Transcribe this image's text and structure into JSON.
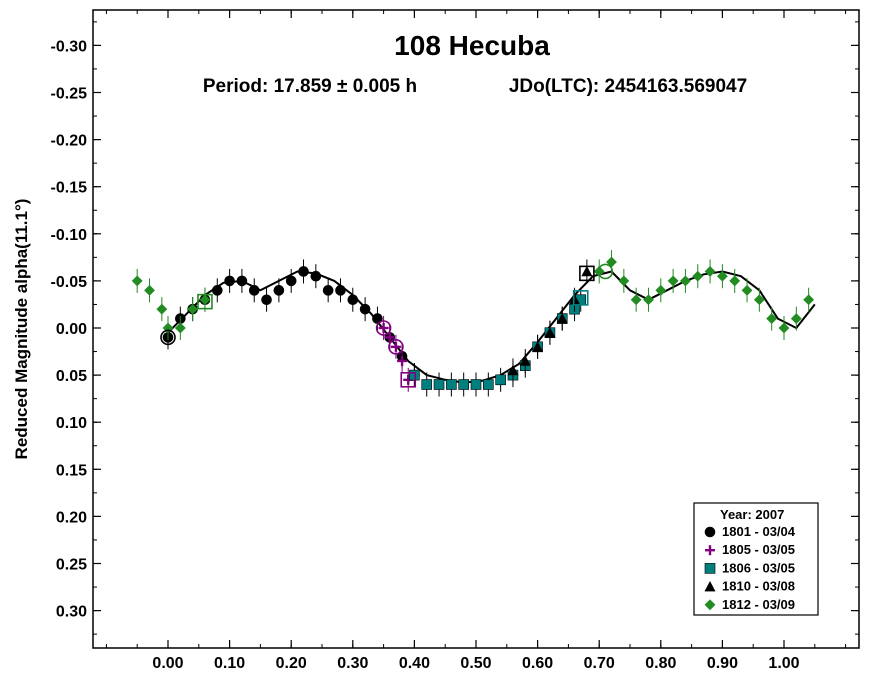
{
  "chart_data": {
    "type": "scatter",
    "title": "108 Hecuba",
    "subtitle_period": "Period: 17.859 ± 0.005 h",
    "subtitle_epoch": "JDo(LTC): 2454163.569047",
    "xlabel": "",
    "ylabel": "Reduced Magnitude alpha(11.1°)",
    "xlim": [
      -0.12,
      1.12
    ],
    "ylim": [
      -0.35,
      0.35
    ],
    "y_inverted": true,
    "x_ticks": [
      "0.00",
      "0.10",
      "0.20",
      "0.30",
      "0.40",
      "0.50",
      "0.60",
      "0.70",
      "0.80",
      "0.90",
      "1.00"
    ],
    "y_ticks": [
      "-0.30",
      "-0.25",
      "-0.20",
      "-0.15",
      "-0.10",
      "-0.05",
      "0.00",
      "0.05",
      "0.10",
      "0.15",
      "0.20",
      "0.25",
      "0.30"
    ],
    "legend": {
      "title": "Year: 2007",
      "placement": "bottom-right",
      "entries": [
        "1801 - 03/04",
        "1805 - 03/05",
        "1806 - 03/05",
        "1810 - 03/08",
        "1812 - 03/09"
      ]
    },
    "colors": {
      "1801": "#000000",
      "1805": "#800080",
      "1806": "#007f7f",
      "1810": "#000000",
      "1812": "#228b22"
    },
    "series": [
      {
        "name": "1801 - 03/04",
        "marker": "circle",
        "color": "#000000",
        "x": [
          0.0,
          0.02,
          0.04,
          0.06,
          0.08,
          0.1,
          0.12,
          0.14,
          0.16,
          0.18,
          0.2,
          0.22,
          0.24,
          0.26,
          0.28,
          0.3,
          0.32,
          0.34,
          0.36,
          0.38,
          0.4
        ],
        "y": [
          0.01,
          -0.01,
          -0.02,
          -0.03,
          -0.04,
          -0.05,
          -0.05,
          -0.04,
          -0.03,
          -0.04,
          -0.05,
          -0.06,
          -0.055,
          -0.04,
          -0.04,
          -0.03,
          -0.02,
          -0.01,
          0.01,
          0.03,
          0.05
        ]
      },
      {
        "name": "1805 - 03/05",
        "marker": "plus",
        "color": "#800080",
        "x": [
          0.35,
          0.36,
          0.37,
          0.38,
          0.39
        ],
        "y": [
          0.0,
          0.01,
          0.02,
          0.035,
          0.055
        ]
      },
      {
        "name": "1806 - 03/05",
        "marker": "square",
        "color": "#007f7f",
        "x": [
          0.4,
          0.42,
          0.44,
          0.46,
          0.48,
          0.5,
          0.52,
          0.54,
          0.56,
          0.58,
          0.6,
          0.62,
          0.64,
          0.66,
          0.67
        ],
        "y": [
          0.05,
          0.06,
          0.06,
          0.06,
          0.06,
          0.06,
          0.06,
          0.055,
          0.05,
          0.04,
          0.02,
          0.005,
          -0.01,
          -0.02,
          -0.03
        ]
      },
      {
        "name": "1810 - 03/08",
        "marker": "triangle",
        "color": "#000000",
        "x": [
          0.56,
          0.58,
          0.6,
          0.62,
          0.64,
          0.66,
          0.68
        ],
        "y": [
          0.045,
          0.035,
          0.02,
          0.005,
          -0.01,
          -0.03,
          -0.06
        ]
      },
      {
        "name": "1812 - 03/09",
        "marker": "diamond",
        "color": "#228b22",
        "x": [
          -0.05,
          -0.03,
          -0.01,
          0.0,
          0.02,
          0.04,
          0.06,
          0.7,
          0.72,
          0.74,
          0.76,
          0.78,
          0.8,
          0.82,
          0.84,
          0.86,
          0.88,
          0.9,
          0.92,
          0.94,
          0.96,
          0.98,
          1.0,
          1.02,
          1.04
        ],
        "y": [
          -0.05,
          -0.04,
          -0.02,
          0.0,
          0.0,
          -0.02,
          -0.03,
          -0.06,
          -0.07,
          -0.05,
          -0.03,
          -0.03,
          -0.04,
          -0.05,
          -0.05,
          -0.055,
          -0.06,
          -0.055,
          -0.05,
          -0.04,
          -0.03,
          -0.01,
          0.0,
          -0.01,
          -0.03
        ]
      }
    ],
    "fit_curve": {
      "x": [
        0.0,
        0.03,
        0.06,
        0.09,
        0.12,
        0.15,
        0.18,
        0.21,
        0.24,
        0.27,
        0.3,
        0.33,
        0.36,
        0.39,
        0.42,
        0.45,
        0.48,
        0.51,
        0.54,
        0.57,
        0.6,
        0.63,
        0.66,
        0.69,
        0.72,
        0.75,
        0.78,
        0.81,
        0.84,
        0.87,
        0.9,
        0.93,
        0.96,
        0.99,
        1.02,
        1.05
      ],
      "y": [
        0.005,
        -0.015,
        -0.035,
        -0.048,
        -0.05,
        -0.04,
        -0.05,
        -0.06,
        -0.058,
        -0.05,
        -0.035,
        -0.015,
        0.01,
        0.035,
        0.05,
        0.055,
        0.058,
        0.056,
        0.05,
        0.038,
        0.015,
        -0.01,
        -0.035,
        -0.055,
        -0.06,
        -0.04,
        -0.03,
        -0.04,
        -0.05,
        -0.057,
        -0.06,
        -0.055,
        -0.04,
        -0.01,
        0.0,
        -0.025
      ]
    },
    "open_markers": [
      {
        "series": "1801",
        "marker": "circle",
        "x": 0.0,
        "y": 0.01
      },
      {
        "series": "1805",
        "marker": "circle",
        "x": 0.35,
        "y": 0.0
      },
      {
        "series": "1805",
        "marker": "circle",
        "x": 0.37,
        "y": 0.02
      },
      {
        "series": "1805",
        "marker": "square",
        "x": 0.39,
        "y": 0.055
      },
      {
        "series": "1812",
        "marker": "square",
        "x": 0.06,
        "y": -0.028
      },
      {
        "series": "1806",
        "marker": "square",
        "x": 0.67,
        "y": -0.032
      },
      {
        "series": "1810",
        "marker": "square",
        "x": 0.68,
        "y": -0.058
      },
      {
        "series": "1812",
        "marker": "circle",
        "x": 0.71,
        "y": -0.06
      }
    ]
  }
}
